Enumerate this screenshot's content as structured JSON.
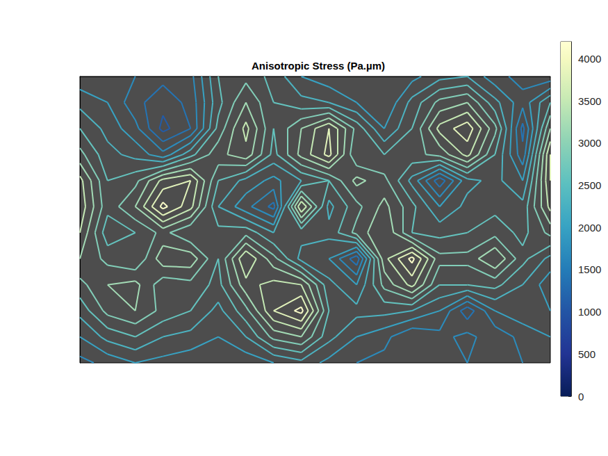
{
  "chart_data": {
    "type": "contour",
    "title": "Anisotropic Stress (Pa.µm)",
    "x": [
      0,
      1,
      2,
      3,
      4,
      5,
      6,
      7,
      8,
      9,
      10,
      11,
      12,
      13,
      14,
      15,
      16,
      17
    ],
    "y": [
      0,
      1,
      2,
      3,
      4,
      5,
      6,
      7,
      8,
      9,
      10,
      11
    ],
    "values": [
      [
        1800,
        1900,
        1700,
        1500,
        1600,
        2600,
        2800,
        2500,
        2000,
        1800,
        1900,
        1700,
        1900,
        2200,
        2300,
        1800,
        1600,
        1500
      ],
      [
        2200,
        2000,
        1500,
        1200,
        1500,
        2500,
        3200,
        2600,
        2400,
        2300,
        2000,
        1700,
        2400,
        3000,
        3200,
        2400,
        1800,
        2600
      ],
      [
        2600,
        2200,
        1800,
        1000,
        1400,
        2700,
        3600,
        2600,
        3200,
        3800,
        2800,
        2000,
        2600,
        3600,
        4000,
        3000,
        1300,
        3200
      ],
      [
        3000,
        2400,
        2200,
        1800,
        2500,
        3100,
        3400,
        2500,
        3300,
        3900,
        2600,
        2600,
        2800,
        3000,
        3600,
        2600,
        1500,
        3800
      ],
      [
        3600,
        2600,
        2800,
        3600,
        3800,
        2600,
        2200,
        1900,
        2300,
        2600,
        3300,
        3000,
        2200,
        1200,
        2200,
        2400,
        2000,
        3800
      ],
      [
        3700,
        2700,
        3200,
        4200,
        3600,
        2300,
        1800,
        1300,
        3800,
        2200,
        2800,
        3300,
        2700,
        2000,
        2400,
        2500,
        2400,
        3600
      ],
      [
        3500,
        2400,
        2600,
        3000,
        2600,
        2700,
        2800,
        2300,
        2400,
        2400,
        3000,
        3500,
        2600,
        2500,
        2600,
        2800,
        2500,
        3000
      ],
      [
        3200,
        2800,
        2600,
        3400,
        3400,
        2600,
        3800,
        3000,
        2200,
        2000,
        1200,
        3400,
        4200,
        3000,
        3000,
        3500,
        2700,
        2200
      ],
      [
        2800,
        3200,
        3300,
        2700,
        2800,
        2500,
        3400,
        3600,
        3500,
        2400,
        2000,
        3000,
        3600,
        2600,
        2600,
        2700,
        2300,
        1800
      ],
      [
        2400,
        3000,
        3200,
        2800,
        2600,
        2200,
        2800,
        3800,
        4200,
        2600,
        2400,
        2400,
        2300,
        2000,
        1200,
        2000,
        2200,
        2000
      ],
      [
        2000,
        2400,
        2600,
        2300,
        2200,
        2000,
        2300,
        3000,
        3200,
        2400,
        2000,
        1800,
        1400,
        1600,
        1800,
        1500,
        1800,
        2000
      ],
      [
        1600,
        1800,
        2000,
        1900,
        1800,
        1700,
        1800,
        2000,
        2200,
        1900,
        1700,
        1600,
        1500,
        1600,
        1700,
        1600,
        1700,
        1800
      ]
    ],
    "levels": [
      800,
      1100,
      1400,
      1700,
      2000,
      2300,
      2600,
      2900,
      3200,
      3500,
      3800,
      4100
    ],
    "xlim": [
      0,
      17
    ],
    "ylim": [
      0,
      11
    ],
    "tick_labels": false,
    "colorbar": {
      "range": [
        0,
        4200
      ],
      "ticks": [
        0,
        500,
        1000,
        1500,
        2000,
        2500,
        3000,
        3500,
        4000
      ]
    }
  }
}
